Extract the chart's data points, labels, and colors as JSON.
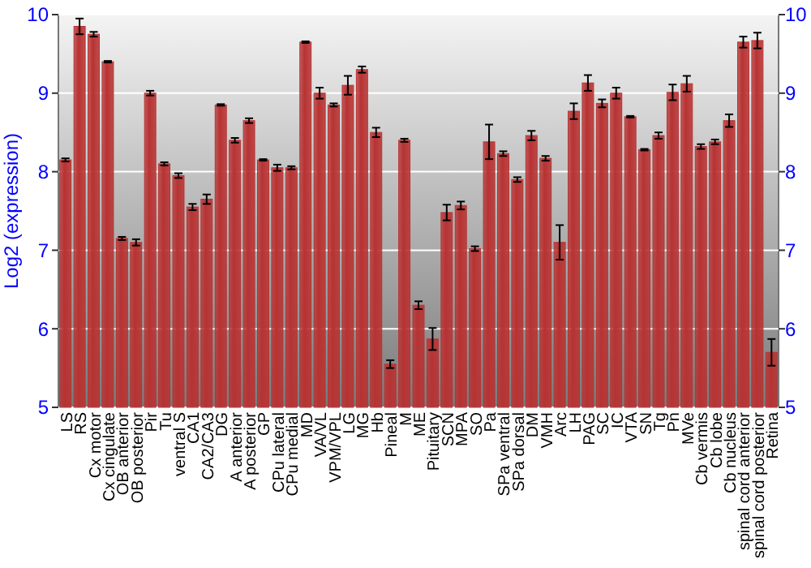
{
  "chart_data": {
    "type": "bar",
    "ylabel": "Log2 (expression)",
    "categories": [
      "LS",
      "RS",
      "Cx motor",
      "Cx cingulate",
      "OB anterior",
      "OB posterior",
      "Pir",
      "Tu",
      "ventral S",
      "CA1",
      "CA2/CA3",
      "DG",
      "A anterior",
      "A posterior",
      "GP",
      "CPu lateral",
      "CPu medial",
      "MD",
      "VA/VL",
      "VPM/VPL",
      "LG",
      "MG",
      "Hb",
      "Pineal",
      "M",
      "ME",
      "Pituitary",
      "SCN",
      "MPA",
      "SO",
      "Pa",
      "SPa ventral",
      "SPa dorsal",
      "DM",
      "VMH",
      "Arc",
      "LH",
      "PAG",
      "SC",
      "IC",
      "VTA",
      "SN",
      "Tg",
      "Pn",
      "MVe",
      "Cb vermis",
      "Cb lobe",
      "Cb nucleus",
      "spinal cord anterior",
      "spinal cord posterior",
      "Retina"
    ],
    "values": [
      8.15,
      9.85,
      9.75,
      9.4,
      7.15,
      7.1,
      9.0,
      8.1,
      7.95,
      7.55,
      7.65,
      8.85,
      8.4,
      8.65,
      8.15,
      8.05,
      8.05,
      9.65,
      9.0,
      8.85,
      9.1,
      9.3,
      8.5,
      5.55,
      8.4,
      6.3,
      5.87,
      7.48,
      7.57,
      7.02,
      8.38,
      8.23,
      7.9,
      8.46,
      8.17,
      7.1,
      8.77,
      9.13,
      8.87,
      9.0,
      8.7,
      8.28,
      8.46,
      9.01,
      9.12,
      8.32,
      8.38,
      8.65,
      9.65,
      9.67,
      5.7
    ],
    "errors": [
      0.02,
      0.1,
      0.03,
      0.01,
      0.02,
      0.04,
      0.03,
      0.02,
      0.03,
      0.04,
      0.06,
      0.01,
      0.03,
      0.03,
      0.01,
      0.04,
      0.02,
      0.01,
      0.07,
      0.02,
      0.12,
      0.04,
      0.06,
      0.05,
      0.02,
      0.05,
      0.14,
      0.1,
      0.05,
      0.03,
      0.22,
      0.03,
      0.03,
      0.06,
      0.03,
      0.22,
      0.1,
      0.1,
      0.05,
      0.07,
      0.01,
      0.01,
      0.04,
      0.1,
      0.1,
      0.03,
      0.03,
      0.08,
      0.07,
      0.1,
      0.17
    ],
    "color": "#b83232",
    "ylim": [
      5,
      10
    ],
    "yticks": [
      5,
      6,
      7,
      8,
      9,
      10
    ],
    "y2lim": [
      5,
      10
    ],
    "y2ticks": [
      5,
      6,
      7,
      8,
      9,
      10
    ],
    "grid": "y"
  }
}
